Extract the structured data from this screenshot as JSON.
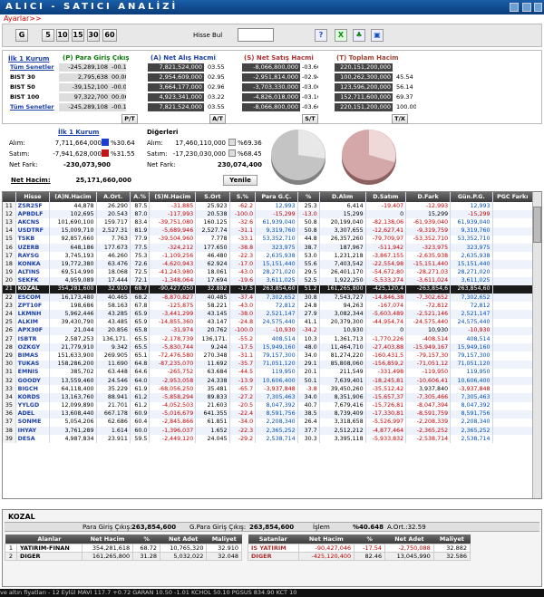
{
  "app": {
    "title": "ALICI - SATICI ANALİZİ",
    "menu": "Ayarlar>>"
  },
  "toolbar": {
    "g": "G",
    "periods": [
      "5",
      "10",
      "15",
      "30",
      "60"
    ],
    "hisse_label": "Hisse Bul",
    "hisse_value": ""
  },
  "summary": {
    "headers": {
      "pgc": "(P) Para Giriş Çıkış",
      "anh": "(A) Net Alış Hacmi",
      "snh": "(S) Net Satış Hacmi",
      "th": "(T) Toplam Hacim"
    },
    "first_link": "İlk 1 Kurum",
    "rows": [
      {
        "name": "Tüm Senetler",
        "p": "-245,289,108",
        "pp": "-00.11",
        "a": "7,821,524,000",
        "ap": "03.55",
        "s": "-8,066,800,000",
        "sp": "-03.66",
        "t": "220,151,200,000",
        "tp": ""
      },
      {
        "name": "BIST 30",
        "p": "2,795,638",
        "pp": "00.00",
        "a": "2,954,609,000",
        "ap": "02.95",
        "s": "-2,951,814,000",
        "sp": "-02.94",
        "t": "100,262,300,000",
        "tp": "45.54"
      },
      {
        "name": "BIST 50",
        "p": "-39,152,100",
        "pp": "-00.03",
        "a": "3,664,177,000",
        "ap": "02.96",
        "s": "-3,703,330,000",
        "sp": "-03.00",
        "t": "123,596,200,000",
        "tp": "56.14"
      },
      {
        "name": "BIST 100",
        "p": "97,322,700",
        "pp": "00.06",
        "a": "4,923,341,000",
        "ap": "03.22",
        "s": "-4,826,018,000",
        "sp": "-03.16",
        "t": "152,711,600,000",
        "tp": "69.37"
      },
      {
        "name": "Tüm Senetler",
        "p": "-245,289,108",
        "pp": "-00.11",
        "a": "7,821,524,000",
        "ap": "03.55",
        "s": "-8,066,800,000",
        "sp": "-03.66",
        "t": "220,151,200,000",
        "tp": "100.00"
      }
    ],
    "btns": {
      "pt": "P/T",
      "at": "A/T",
      "st": "S/T",
      "tx": "T/X"
    }
  },
  "kurum": {
    "link": "İlk 1 Kurum",
    "alim_label": "Alım:",
    "alim": "7,711,664,000",
    "alim_pct": "%30.64",
    "satim_label": "Satım:",
    "satim": "-7,941,628,000",
    "satim_pct": "%31.55",
    "netfark_label": "Net Fark:",
    "netfark": "-230,073,900",
    "digerleri": "Diğerleri",
    "d_alim": "17,460,110,000",
    "d_alim_pct": "%69.36",
    "d_satim": "-17,230,030,000",
    "d_satim_pct": "%68.45",
    "d_netfark": "230,074,400",
    "nethacim_label": "Net Hacim:",
    "nethacim": "25,171,660,000",
    "yenile": "Yenile"
  },
  "grid": {
    "headers": [
      "",
      "Hisse",
      "(A)N.Hacim",
      "A.Ort.",
      "A.%",
      "(S)N.Hacim",
      "S.Ort",
      "S.%",
      "Para G.Ç.",
      "%",
      "D.Alım",
      "D.Satım",
      "D.Fark",
      "Gün.P.G.",
      "PGC Farkı"
    ],
    "rows": [
      [
        "11",
        "ZSR25F",
        "44,878",
        "26.290",
        "87.5",
        "-31,885",
        "25.923",
        "-62.2",
        "12,993",
        "25.3",
        "6,414",
        "-19,407",
        "-12,993",
        "12,993",
        ""
      ],
      [
        "12",
        "APBDLF",
        "102,695",
        "20.543",
        "87.0",
        "-117,993",
        "20.538",
        "-100.0",
        "-15,299",
        "-13.0",
        "15,299",
        "0",
        "15,299",
        "-15,299",
        ""
      ],
      [
        "13",
        "AKCNS",
        "101,690,100",
        "159.717",
        "83.4",
        "-39,751,080",
        "160.125",
        "-32.6",
        "61,939,040",
        "50.8",
        "20,199,040",
        "-82,138,06",
        "-61,939,040",
        "61,939,040",
        ""
      ],
      [
        "14",
        "USDTRF",
        "15,009,710",
        "2,527.31",
        "81.9",
        "-5,689,946",
        "2,527.74",
        "-31.1",
        "9,319,760",
        "50.8",
        "3,307,655",
        "-12,627,41",
        "-9,319,759",
        "9,319,760",
        ""
      ],
      [
        "15",
        "TSKB",
        "92,857,660",
        "7.763",
        "77.9",
        "-39,504,960",
        "7.778",
        "-33.1",
        "53,352,710",
        "44.8",
        "26,357,260",
        "-79,709,97",
        "-53,352,710",
        "53,352,710",
        ""
      ],
      [
        "16",
        "UZERB",
        "648,186",
        "177.673",
        "77.5",
        "-324,212",
        "177.650",
        "-38.8",
        "323,975",
        "38.7",
        "187,967",
        "-511,942",
        "-323,975",
        "323,975",
        ""
      ],
      [
        "17",
        "RAYSG",
        "3,745,193",
        "46.260",
        "75.3",
        "-1,109,256",
        "46.480",
        "-22.3",
        "2,635,938",
        "53.0",
        "1,231,218",
        "-3,867,155",
        "-2,635,938",
        "2,635,938",
        ""
      ],
      [
        "18",
        "KONKA",
        "19,772,380",
        "63.476",
        "72.6",
        "-4,620,943",
        "62.924",
        "-17.0",
        "15,151,440",
        "55.6",
        "7,403,542",
        "-22,554,98",
        "-15,151,440",
        "15,151,440",
        ""
      ],
      [
        "19",
        "ALTINS",
        "69,514,990",
        "18.068",
        "72.5",
        "-41,243,980",
        "18.061",
        "-43.0",
        "28,271,020",
        "29.5",
        "26,401,170",
        "-54,672,80",
        "-28,271,03",
        "28,271,020",
        ""
      ],
      [
        "20",
        "SEKFK",
        "4,959,089",
        "17.444",
        "72.1",
        "-1,348,064",
        "17.694",
        "-19.6",
        "3,611,025",
        "52.5",
        "1,922,250",
        "-5,533,274",
        "-3,611,024",
        "3,611,025",
        ""
      ],
      [
        "21",
        "KOZAL",
        "354,281,600",
        "32.910",
        "68.7",
        "-90,427,050",
        "32.882",
        "-17.5",
        "263,854,60",
        "51.2",
        "161,265,800",
        "-425,120,4",
        "-263,854,6",
        "263,854,60",
        ""
      ],
      [
        "22",
        "ESCOM",
        "16,173,480",
        "40.465",
        "68.2",
        "-8,870,827",
        "40.485",
        "-37.4",
        "7,302,652",
        "30.8",
        "7,543,727",
        "-14,846,38",
        "-7,302,652",
        "7,302,652",
        ""
      ],
      [
        "23",
        "ZPT10F",
        "198,686",
        "58.163",
        "67.8",
        "-125,875",
        "58.221",
        "-43.0",
        "72,812",
        "24.8",
        "94,263",
        "-167,074",
        "-72,812",
        "72,812",
        ""
      ],
      [
        "24",
        "LKMNH",
        "5,962,446",
        "43.285",
        "65.9",
        "-3,441,299",
        "43.145",
        "-38.0",
        "2,521,147",
        "27.9",
        "3,082,344",
        "-5,603,489",
        "-2,521,146",
        "2,521,147",
        ""
      ],
      [
        "25",
        "ALKIM",
        "39,430,790",
        "43.485",
        "65.9",
        "-14,855,360",
        "43.147",
        "-24.8",
        "24,575,440",
        "41.1",
        "20,379,300",
        "-44,954,74",
        "-24,575,440",
        "24,575,440",
        ""
      ],
      [
        "26",
        "APX30F",
        "21,044",
        "20.856",
        "65.8",
        "-31,974",
        "20.762",
        "-100.0",
        "-10,930",
        "-34.2",
        "10,930",
        "0",
        "10,930",
        "-10,930",
        ""
      ],
      [
        "27",
        "ISBTR",
        "2,587,253",
        "136,171.",
        "65.5",
        "-2,178,739",
        "136,171.",
        "-55.2",
        "408,514",
        "10.3",
        "1,361,713",
        "-1,770,226",
        "-408,514",
        "408,514",
        ""
      ],
      [
        "28",
        "OZKGY",
        "21,779,910",
        "9.342",
        "65.5",
        "-5,830,744",
        "9.244",
        "-17.5",
        "15,949,160",
        "48.0",
        "11,464,710",
        "-27,403,88",
        "-15,949,167",
        "15,949,160",
        ""
      ],
      [
        "29",
        "BIMAS",
        "151,633,900",
        "269.905",
        "65.1",
        "-72,476,580",
        "270.348",
        "-31.1",
        "79,157,300",
        "34.0",
        "81,274,220",
        "-160,431,5",
        "-79,157,30",
        "79,157,300",
        ""
      ],
      [
        "30",
        "TUKAS",
        "158,286,200",
        "11.690",
        "64.8",
        "-87,235,070",
        "11.692",
        "-35.7",
        "71,051,120",
        "29.1",
        "85,808,060",
        "-156,859,2",
        "-71,051,12",
        "71,051,120",
        ""
      ],
      [
        "31",
        "EMNIS",
        "385,702",
        "63.448",
        "64.6",
        "-265,752",
        "63.684",
        "-44.5",
        "119,950",
        "20.1",
        "211,549",
        "-331,498",
        "-119,950",
        "119,950",
        ""
      ],
      [
        "32",
        "GOODY",
        "13,559,460",
        "24.546",
        "64.0",
        "-2,953,058",
        "24.338",
        "-13.9",
        "10,606,400",
        "50.1",
        "7,639,401",
        "-18,245,81",
        "-10,606,41",
        "10,606,400",
        ""
      ],
      [
        "33",
        "BIGCH",
        "64,118,400",
        "35.229",
        "61.9",
        "-68,056,250",
        "35.481",
        "-65.7",
        "-3,937,848",
        "-3.8",
        "39,450,260",
        "-35,512,42",
        "3,937,840",
        "-3,937,848",
        ""
      ],
      [
        "34",
        "KORDS",
        "13,163,760",
        "88.941",
        "61.2",
        "-5,858,294",
        "89.833",
        "-27.2",
        "7,305,463",
        "34.0",
        "8,351,906",
        "-15,657,37",
        "-7,305,466",
        "7,305,463",
        ""
      ],
      [
        "35",
        "YYLGD",
        "12,099,890",
        "21.701",
        "61.2",
        "-4,052,503",
        "21.603",
        "-20.5",
        "8,047,392",
        "40.7",
        "7,679,416",
        "-15,726,81",
        "-8,047,394",
        "8,047,392",
        ""
      ],
      [
        "36",
        "ADEL",
        "13,608,440",
        "667.178",
        "60.9",
        "-5,016,679",
        "641.355",
        "-22.4",
        "8,591,756",
        "38.5",
        "8,739,409",
        "-17,330,81",
        "-8,591,759",
        "8,591,756",
        ""
      ],
      [
        "37",
        "SONME",
        "5,054,206",
        "62.686",
        "60.4",
        "-2,845,866",
        "61.851",
        "-34.0",
        "2,208,340",
        "26.4",
        "3,318,658",
        "-5,526,997",
        "-2,208,339",
        "2,208,340",
        ""
      ],
      [
        "38",
        "IHYAY",
        "3,761,289",
        "1.614",
        "60.0",
        "-1,396,037",
        "1.652",
        "-22.3",
        "2,365,252",
        "37.7",
        "2,512,212",
        "-4,877,464",
        "-2,365,252",
        "2,365,252",
        ""
      ],
      [
        "39",
        "DESA",
        "4,987,834",
        "23.911",
        "59.5",
        "-2,449,120",
        "24.045",
        "-29.2",
        "2,538,714",
        "30.3",
        "3,395,118",
        "-5,933,832",
        "-2,538,714",
        "2,538,714",
        ""
      ]
    ]
  },
  "bottom": {
    "symbol": "KOZAL",
    "pgc_label": "Para Giriş Çıkış:",
    "pgc": "263,854,600",
    "gpgc_label": "G.Para Giriş Çıkış:",
    "gpgc": "263,854,600",
    "islem_label": "İşlem",
    "islem": "%40.648",
    "aort_label": "A.Ort.:32.59",
    "buy_headers": [
      "Alanlar",
      "Net Hacim",
      "%",
      "Net Adet",
      "Maliyet"
    ],
    "buys": [
      [
        "1",
        "YATIRIM-FINAN",
        "354,281,618",
        "68.72",
        "10,765,320",
        "32.910"
      ],
      [
        "2",
        "DIGER",
        "161,265,800",
        "31.28",
        "5,032,022",
        "32.048"
      ]
    ],
    "sell_headers": [
      "Satanlar",
      "Net Hacim",
      "%",
      "Net Adet",
      "Maliyet"
    ],
    "sells": [
      [
        "IS YATIRIM",
        "-90,427,046",
        "-17.54",
        "-2,750,088",
        "32.882"
      ],
      [
        "DIGER",
        "-425,120,400",
        "82.46",
        "13,045,990",
        "32.586"
      ]
    ]
  },
  "ticker": "ve altın fiyatları - 12 Eylül    MAVI  117.7  +0.72  GARAN  10.50  -1.01  KCHOL  50.10  PGSUS  834.90  KCT  10"
}
